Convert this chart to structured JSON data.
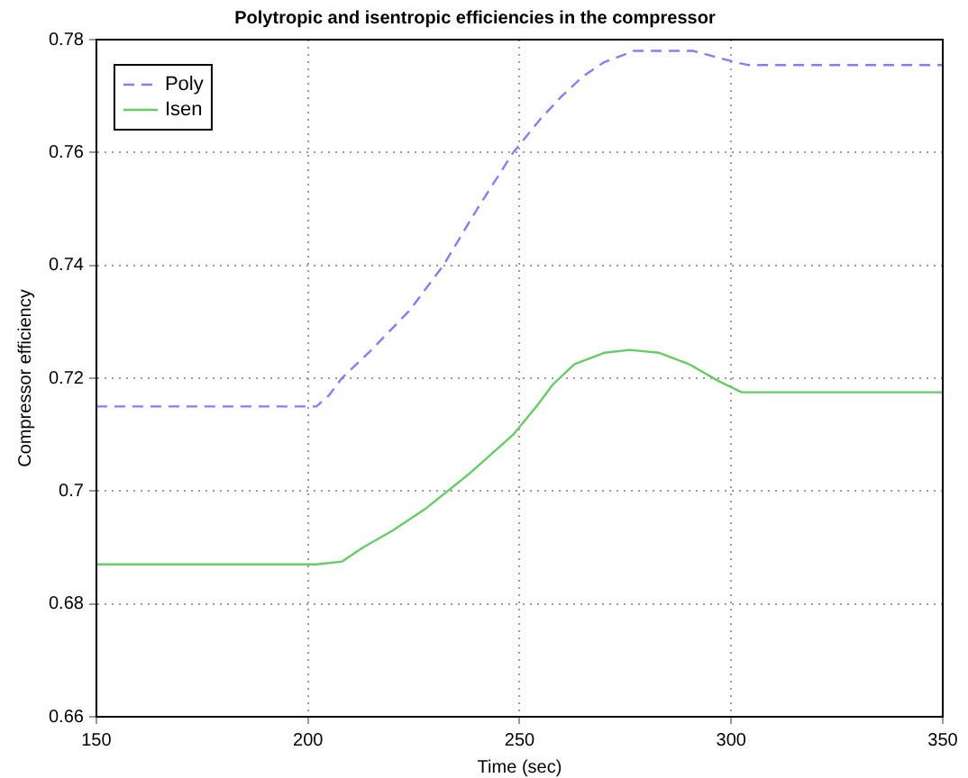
{
  "chart_data": {
    "type": "line",
    "title": "Polytropic and isentropic efficiencies in the compressor",
    "xlabel": "Time (sec)",
    "ylabel": "Compressor efficiency",
    "xlim": [
      150,
      350
    ],
    "xticks": [
      150,
      200,
      250,
      300,
      350
    ],
    "ylim": [
      0.66,
      0.78
    ],
    "yticks": [
      0.66,
      0.68,
      0.7,
      0.72,
      0.74,
      0.76,
      0.78
    ],
    "grid": true,
    "legend": "top left",
    "marker": "none",
    "series": [
      {
        "name": "Poly",
        "color": "#8080ff",
        "line_style": "dashed",
        "x": [
          150,
          202,
          205,
          208,
          215,
          224,
          232,
          240,
          248.5,
          255,
          260,
          265,
          270,
          277,
          285,
          291,
          296,
          301,
          304,
          350
        ],
        "values": [
          0.715,
          0.715,
          0.717,
          0.72,
          0.725,
          0.732,
          0.74,
          0.75,
          0.76,
          0.766,
          0.77,
          0.7735,
          0.776,
          0.778,
          0.778,
          0.778,
          0.777,
          0.776,
          0.7755,
          0.7755
        ]
      },
      {
        "name": "Isen",
        "color": "#66cc66",
        "line_style": "solid",
        "x": [
          150,
          202,
          208,
          213,
          220,
          228,
          238,
          248.5,
          254,
          258,
          263,
          270,
          276,
          283,
          290,
          297,
          302.5,
          350
        ],
        "values": [
          0.687,
          0.687,
          0.6875,
          0.69,
          0.693,
          0.697,
          0.703,
          0.71,
          0.715,
          0.719,
          0.7225,
          0.7245,
          0.725,
          0.7245,
          0.7225,
          0.7195,
          0.7175,
          0.7175
        ]
      }
    ]
  }
}
